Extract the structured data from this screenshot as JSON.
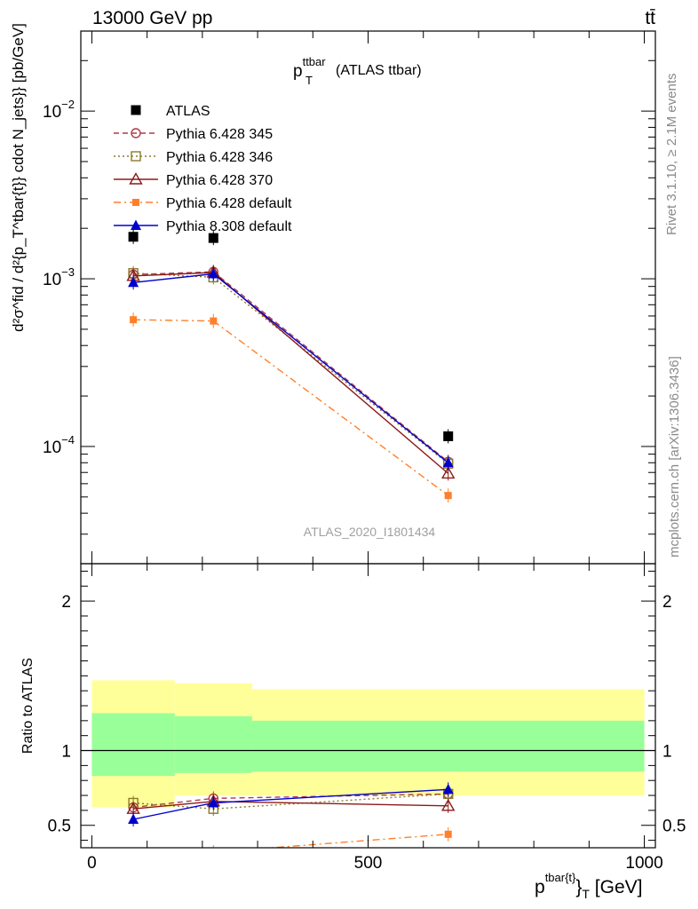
{
  "header": {
    "left": "13000 GeV pp",
    "right": "tt̄"
  },
  "side_labels": {
    "rivet": "Rivet 3.1.10, ≥ 2.1M events",
    "mcplots": "mcplots.cern.ch [arXiv:1306.3436]"
  },
  "watermark": "ATLAS_2020_I1801434",
  "chart_data": [
    {
      "type": "line",
      "panel": "main",
      "title": {
        "main": "p",
        "sub": "T",
        "sup": "ttbar",
        "suffix": " (ATLAS ttbar)"
      },
      "ylabel": "d²σ^fid / d²{p_T^tbar{t}} cdot N_jets}} [pb/GeV]",
      "yscale": "log",
      "xlim": [
        -20,
        1020
      ],
      "ylim": [
        2e-05,
        0.03
      ],
      "yticks": [
        {
          "value": 0.01,
          "mant": "10",
          "exp": "−2"
        },
        {
          "value": 0.001,
          "mant": "10",
          "exp": "−3"
        },
        {
          "value": 0.0001,
          "mant": "10",
          "exp": "−4"
        }
      ],
      "legend_position": "top-left",
      "series": [
        {
          "name": "ATLAS",
          "color": "#000000",
          "marker": "filled-square",
          "line": "none",
          "x": [
            75,
            220,
            645
          ],
          "y": [
            0.00178,
            0.00175,
            0.000115
          ]
        },
        {
          "name": "Pythia 6.428 345",
          "color": "#b03a48",
          "marker": "open-circle",
          "line": "dashed",
          "x": [
            75,
            220,
            645
          ],
          "y": [
            0.00106,
            0.0011,
            8.1e-05
          ]
        },
        {
          "name": "Pythia 6.428 346",
          "color": "#8b7a2a",
          "marker": "open-square",
          "line": "dotted",
          "x": [
            75,
            220,
            645
          ],
          "y": [
            0.00108,
            0.00102,
            7.9e-05
          ]
        },
        {
          "name": "Pythia 6.428 370",
          "color": "#8b1a1a",
          "marker": "open-triangle",
          "line": "solid",
          "x": [
            75,
            220,
            645
          ],
          "y": [
            0.00104,
            0.00109,
            6.9e-05
          ]
        },
        {
          "name": "Pythia 6.428 default",
          "color": "#ff7f2a",
          "marker": "filled-square-small",
          "line": "dashdot",
          "x": [
            75,
            220,
            645
          ],
          "y": [
            0.00057,
            0.00056,
            5.1e-05
          ]
        },
        {
          "name": "Pythia 8.308 default",
          "color": "#0000cc",
          "marker": "filled-triangle",
          "line": "solid",
          "x": [
            75,
            220,
            645
          ],
          "y": [
            0.00095,
            0.00107,
            8e-05
          ]
        }
      ]
    },
    {
      "type": "line",
      "panel": "ratio",
      "ylabel": "Ratio to ATLAS",
      "xlabel": {
        "main": "p",
        "sup": "tbar{t}",
        "tail": "}",
        "sub": "T",
        "unit": " [GeV]"
      },
      "xlim": [
        -20,
        1020
      ],
      "ylim": [
        0.35,
        2.25
      ],
      "xticks": [
        0,
        500,
        1000
      ],
      "yticks": [
        0.5,
        1,
        2
      ],
      "reference_line": 1,
      "bands": [
        {
          "x0": 0,
          "x1": 150,
          "outer": [
            0.62,
            1.47
          ],
          "inner": [
            0.83,
            1.25
          ]
        },
        {
          "x0": 150,
          "x1": 290,
          "outer": [
            0.7,
            1.45
          ],
          "inner": [
            0.85,
            1.23
          ]
        },
        {
          "x0": 290,
          "x1": 1000,
          "outer": [
            0.7,
            1.41
          ],
          "inner": [
            0.86,
            1.2
          ]
        }
      ],
      "band_colors": {
        "outer": "#ffff99",
        "inner": "#99ff99"
      },
      "series": [
        {
          "name": "Pythia 6.428 345",
          "color": "#b03a48",
          "marker": "open-circle",
          "line": "dashed",
          "x": [
            75,
            220,
            645
          ],
          "y": [
            0.62,
            0.68,
            0.71
          ]
        },
        {
          "name": "Pythia 6.428 346",
          "color": "#8b7a2a",
          "marker": "open-square",
          "line": "dotted",
          "x": [
            75,
            220,
            645
          ],
          "y": [
            0.65,
            0.61,
            0.71
          ]
        },
        {
          "name": "Pythia 6.428 370",
          "color": "#8b1a1a",
          "marker": "open-triangle",
          "line": "solid",
          "x": [
            75,
            220,
            645
          ],
          "y": [
            0.61,
            0.66,
            0.63
          ]
        },
        {
          "name": "Pythia 6.428 default",
          "color": "#ff7f2a",
          "marker": "filled-square-small",
          "line": "dashdot",
          "x": [
            75,
            220,
            645
          ],
          "y": [
            0.3,
            0.32,
            0.44
          ]
        },
        {
          "name": "Pythia 8.308 default",
          "color": "#0000cc",
          "marker": "filled-triangle",
          "line": "solid",
          "x": [
            75,
            220,
            645
          ],
          "y": [
            0.54,
            0.65,
            0.74
          ]
        }
      ]
    }
  ]
}
